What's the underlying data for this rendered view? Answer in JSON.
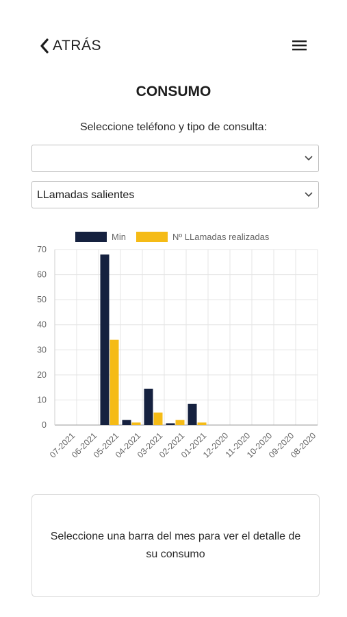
{
  "header": {
    "back_label": "ATRÁS",
    "back_icon": "chevron-left-icon",
    "menu_icon": "hamburger-menu-icon"
  },
  "page": {
    "title": "CONSUMO",
    "subtitle": "Seleccione teléfono y tipo de consulta:"
  },
  "selects": {
    "phone": {
      "value": ""
    },
    "type": {
      "value": "LLamadas salientes"
    }
  },
  "colors": {
    "min": "#15213f",
    "calls": "#f5bb16",
    "grid": "#e4e4e4",
    "axis_text": "#666666"
  },
  "chart_data": {
    "type": "bar",
    "categories": [
      "07-2021",
      "06-2021",
      "05-2021",
      "04-2021",
      "03-2021",
      "02-2021",
      "01-2021",
      "12-2020",
      "11-2020",
      "10-2020",
      "09-2020",
      "08-2020"
    ],
    "series": [
      {
        "name": "Min",
        "values": [
          0,
          0,
          68,
          2,
          14.5,
          0.7,
          8.5,
          0,
          0,
          0,
          0,
          0
        ]
      },
      {
        "name": "Nº LLamadas realizadas",
        "values": [
          0,
          0,
          34,
          1,
          5,
          2,
          1,
          0,
          0,
          0,
          0,
          0
        ]
      }
    ],
    "ylim": [
      0,
      70
    ],
    "yticks": [
      0,
      10,
      20,
      30,
      40,
      50,
      60,
      70
    ],
    "grid": true,
    "legend": "top"
  },
  "detail": {
    "message": "Seleccione una barra del mes para ver el detalle de su consumo"
  }
}
